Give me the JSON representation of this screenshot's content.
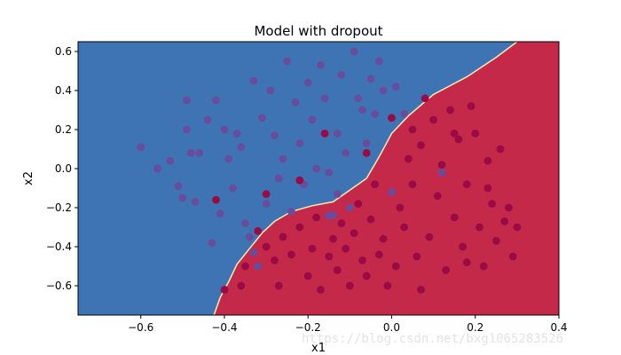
{
  "chart_data": {
    "type": "scatter",
    "title": "Model with dropout",
    "xlabel": "x1",
    "ylabel": "x2",
    "xlim": [
      -0.75,
      0.4
    ],
    "ylim": [
      -0.75,
      0.65
    ],
    "xticks": [
      -0.6,
      -0.4,
      -0.2,
      0.0,
      0.2,
      0.4
    ],
    "yticks": [
      -0.6,
      -0.4,
      -0.2,
      0.0,
      0.2,
      0.4,
      0.6
    ],
    "grid": false,
    "legend": "none",
    "colors": {
      "region_class0": "#3e74b3",
      "region_class1": "#c4294a",
      "boundary_edge": "#f4ecb0",
      "point_class0": "#6a4c9c",
      "point_class1": "#9a0a45"
    },
    "decision_boundary": [
      [
        -0.425,
        -0.75
      ],
      [
        -0.41,
        -0.66
      ],
      [
        -0.39,
        -0.58
      ],
      [
        -0.37,
        -0.49
      ],
      [
        -0.34,
        -0.41
      ],
      [
        -0.31,
        -0.33
      ],
      [
        -0.28,
        -0.27
      ],
      [
        -0.24,
        -0.22
      ],
      [
        -0.19,
        -0.19
      ],
      [
        -0.14,
        -0.17
      ],
      [
        -0.1,
        -0.11
      ],
      [
        -0.06,
        -0.05
      ],
      [
        -0.03,
        0.06
      ],
      [
        0.0,
        0.18
      ],
      [
        0.04,
        0.27
      ],
      [
        0.1,
        0.38
      ],
      [
        0.18,
        0.47
      ],
      [
        0.25,
        0.57
      ],
      [
        0.3,
        0.65
      ]
    ],
    "series": [
      {
        "points": [
          [
            -0.6,
            0.11
          ],
          [
            -0.56,
            0.0
          ],
          [
            -0.53,
            0.04
          ],
          [
            -0.51,
            -0.09
          ],
          [
            -0.5,
            -0.15
          ],
          [
            -0.49,
            0.35
          ],
          [
            -0.49,
            0.2
          ],
          [
            -0.48,
            0.08
          ],
          [
            -0.47,
            -0.17
          ],
          [
            -0.46,
            0.08
          ],
          [
            -0.44,
            0.25
          ],
          [
            -0.43,
            -0.38
          ],
          [
            -0.42,
            0.35
          ],
          [
            -0.41,
            -0.23
          ],
          [
            -0.4,
            0.2
          ],
          [
            -0.39,
            0.05
          ],
          [
            -0.38,
            -0.1
          ],
          [
            -0.37,
            0.18
          ],
          [
            -0.36,
            0.11
          ],
          [
            -0.35,
            -0.28
          ],
          [
            -0.34,
            -0.35
          ],
          [
            -0.33,
            0.45
          ],
          [
            -0.32,
            -0.5
          ],
          [
            -0.31,
            0.26
          ],
          [
            -0.3,
            -0.18
          ],
          [
            -0.29,
            0.4
          ],
          [
            -0.28,
            0.17
          ],
          [
            -0.27,
            -0.05
          ],
          [
            -0.26,
            0.05
          ],
          [
            -0.25,
            0.55
          ],
          [
            -0.24,
            -0.22
          ],
          [
            -0.23,
            0.34
          ],
          [
            -0.22,
            0.13
          ],
          [
            -0.21,
            -0.08
          ],
          [
            -0.2,
            0.44
          ],
          [
            -0.19,
            0.25
          ],
          [
            -0.18,
            0.0
          ],
          [
            -0.17,
            0.53
          ],
          [
            -0.16,
            0.36
          ],
          [
            -0.15,
            -0.02
          ],
          [
            -0.14,
            -0.24
          ],
          [
            -0.13,
            0.18
          ],
          [
            -0.12,
            0.48
          ],
          [
            -0.11,
            0.08
          ],
          [
            -0.1,
            -0.2
          ],
          [
            -0.09,
            0.6
          ],
          [
            -0.08,
            0.36
          ],
          [
            -0.07,
            0.3
          ],
          [
            -0.06,
            0.13
          ],
          [
            -0.05,
            0.46
          ],
          [
            -0.04,
            0.28
          ],
          [
            -0.03,
            0.55
          ],
          [
            -0.02,
            0.4
          ],
          [
            0.01,
            0.42
          ],
          [
            0.03,
            0.28
          ],
          [
            0.12,
            -0.02
          ],
          [
            0.0,
            -0.12
          ],
          [
            -0.15,
            -0.24
          ],
          [
            -0.33,
            -0.43
          ],
          [
            -0.13,
            -0.13
          ]
        ]
      },
      {
        "points": [
          [
            -0.42,
            -0.16
          ],
          [
            -0.4,
            -0.62
          ],
          [
            -0.36,
            -0.6
          ],
          [
            -0.35,
            -0.5
          ],
          [
            -0.32,
            -0.32
          ],
          [
            -0.3,
            -0.13
          ],
          [
            -0.3,
            -0.4
          ],
          [
            -0.28,
            -0.47
          ],
          [
            -0.27,
            -0.6
          ],
          [
            -0.26,
            -0.35
          ],
          [
            -0.24,
            -0.44
          ],
          [
            -0.22,
            -0.3
          ],
          [
            -0.2,
            -0.55
          ],
          [
            -0.19,
            -0.41
          ],
          [
            -0.18,
            -0.25
          ],
          [
            -0.17,
            -0.62
          ],
          [
            -0.16,
            0.18
          ],
          [
            -0.15,
            -0.45
          ],
          [
            -0.14,
            -0.36
          ],
          [
            -0.13,
            -0.52
          ],
          [
            -0.12,
            -0.28
          ],
          [
            -0.11,
            -0.41
          ],
          [
            -0.1,
            -0.6
          ],
          [
            -0.09,
            -0.33
          ],
          [
            -0.08,
            -0.18
          ],
          [
            -0.07,
            -0.47
          ],
          [
            -0.06,
            -0.55
          ],
          [
            -0.05,
            -0.26
          ],
          [
            -0.04,
            -0.08
          ],
          [
            -0.03,
            -0.44
          ],
          [
            -0.02,
            -0.36
          ],
          [
            -0.01,
            -0.6
          ],
          [
            0.0,
            0.26
          ],
          [
            0.01,
            -0.5
          ],
          [
            0.02,
            -0.2
          ],
          [
            0.03,
            -0.3
          ],
          [
            0.04,
            0.05
          ],
          [
            0.05,
            0.2
          ],
          [
            0.06,
            -0.45
          ],
          [
            0.07,
            0.12
          ],
          [
            0.08,
            0.36
          ],
          [
            0.09,
            -0.35
          ],
          [
            0.1,
            0.25
          ],
          [
            0.11,
            -0.14
          ],
          [
            0.12,
            0.02
          ],
          [
            0.13,
            -0.52
          ],
          [
            0.14,
            0.3
          ],
          [
            0.15,
            -0.25
          ],
          [
            0.16,
            0.15
          ],
          [
            0.17,
            -0.4
          ],
          [
            0.18,
            -0.08
          ],
          [
            0.19,
            0.32
          ],
          [
            0.2,
            0.18
          ],
          [
            0.21,
            -0.3
          ],
          [
            0.22,
            -0.5
          ],
          [
            0.23,
            0.04
          ],
          [
            0.24,
            -0.18
          ],
          [
            0.25,
            -0.37
          ],
          [
            0.26,
            0.1
          ],
          [
            0.27,
            -0.27
          ],
          [
            0.28,
            -0.2
          ],
          [
            0.29,
            -0.45
          ],
          [
            0.3,
            -0.3
          ],
          [
            0.15,
            0.18
          ],
          [
            0.07,
            -0.62
          ],
          [
            -0.22,
            -0.06
          ],
          [
            -0.06,
            0.08
          ],
          [
            0.05,
            -0.08
          ],
          [
            0.18,
            -0.48
          ],
          [
            0.23,
            -0.1
          ]
        ]
      }
    ]
  }
}
